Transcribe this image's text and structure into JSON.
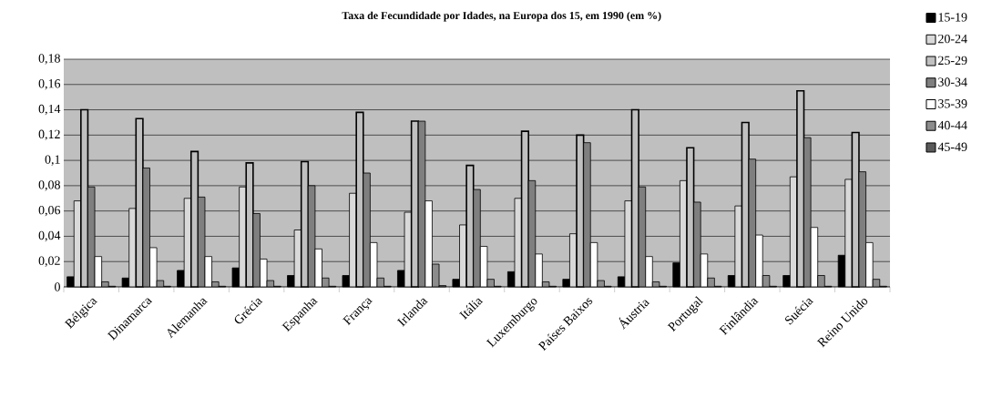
{
  "chart_data": {
    "type": "bar",
    "title": "**Taxa de Fecundidade por Idades, na Europa dos 15, em 1990 (em %)**",
    "categories": [
      "Bélgica",
      "Dinamarca",
      "Alemanha",
      "Grécia",
      "Espanha",
      "França",
      "Irlanda",
      "Itália",
      "Luxemburgo",
      "Países Baixos",
      "Áustria",
      "Portugal",
      "Finlândia",
      "Suécia",
      "Reino Unido"
    ],
    "series": [
      {
        "name": "15-19",
        "color": "#000000",
        "values": [
          0.008,
          0.007,
          0.013,
          0.015,
          0.009,
          0.009,
          0.013,
          0.006,
          0.012,
          0.006,
          0.008,
          0.019,
          0.009,
          0.009,
          0.025
        ]
      },
      {
        "name": "20-24",
        "color": "#d9d9d9",
        "values": [
          0.068,
          0.062,
          0.07,
          0.079,
          0.045,
          0.074,
          0.059,
          0.049,
          0.07,
          0.042,
          0.068,
          0.084,
          0.064,
          0.087,
          0.085
        ]
      },
      {
        "name": "25-29",
        "color": "#c0c0c0",
        "values": [
          0.14,
          0.133,
          0.107,
          0.098,
          0.099,
          0.138,
          0.131,
          0.096,
          0.123,
          0.12,
          0.14,
          0.11,
          0.13,
          0.155,
          0.122
        ]
      },
      {
        "name": "30-34",
        "color": "#7f7f7f",
        "values": [
          0.079,
          0.094,
          0.071,
          0.058,
          0.08,
          0.09,
          0.131,
          0.077,
          0.084,
          0.114,
          0.079,
          0.067,
          0.101,
          0.118,
          0.091
        ]
      },
      {
        "name": "35-39",
        "color": "#ffffff",
        "values": [
          0.024,
          0.031,
          0.024,
          0.022,
          0.03,
          0.035,
          0.068,
          0.032,
          0.026,
          0.035,
          0.024,
          0.026,
          0.041,
          0.047,
          0.035
        ]
      },
      {
        "name": "40-44",
        "color": "#8c8c8c",
        "values": [
          0.004,
          0.005,
          0.004,
          0.005,
          0.007,
          0.007,
          0.018,
          0.006,
          0.004,
          0.005,
          0.004,
          0.007,
          0.009,
          0.009,
          0.006
        ]
      },
      {
        "name": "45-49",
        "color": "#595959",
        "values": [
          0.0005,
          0.0005,
          0.0005,
          0.0005,
          0.0005,
          0.0005,
          0.001,
          0.0005,
          0.0005,
          0.0005,
          0.0005,
          0.0005,
          0.0005,
          0.0005,
          0.0005
        ]
      }
    ],
    "ylim": [
      0,
      0.18
    ],
    "yticks": [
      0,
      {
        "value": 0.02,
        "label": "0,02"
      },
      {
        "value": 0.04,
        "label": "0,04"
      },
      {
        "value": 0.06,
        "label": "0,06"
      },
      {
        "value": 0.08,
        "label": "0,08"
      },
      {
        "value": 0.1,
        "label": "0,1"
      },
      {
        "value": 0.12,
        "label": "0,12"
      },
      {
        "value": 0.14,
        "label": "0,14"
      },
      {
        "value": 0.16,
        "label": "0,16"
      },
      {
        "value": 0.18,
        "label": "0,18"
      }
    ],
    "grid": "y",
    "legend": "top right"
  }
}
